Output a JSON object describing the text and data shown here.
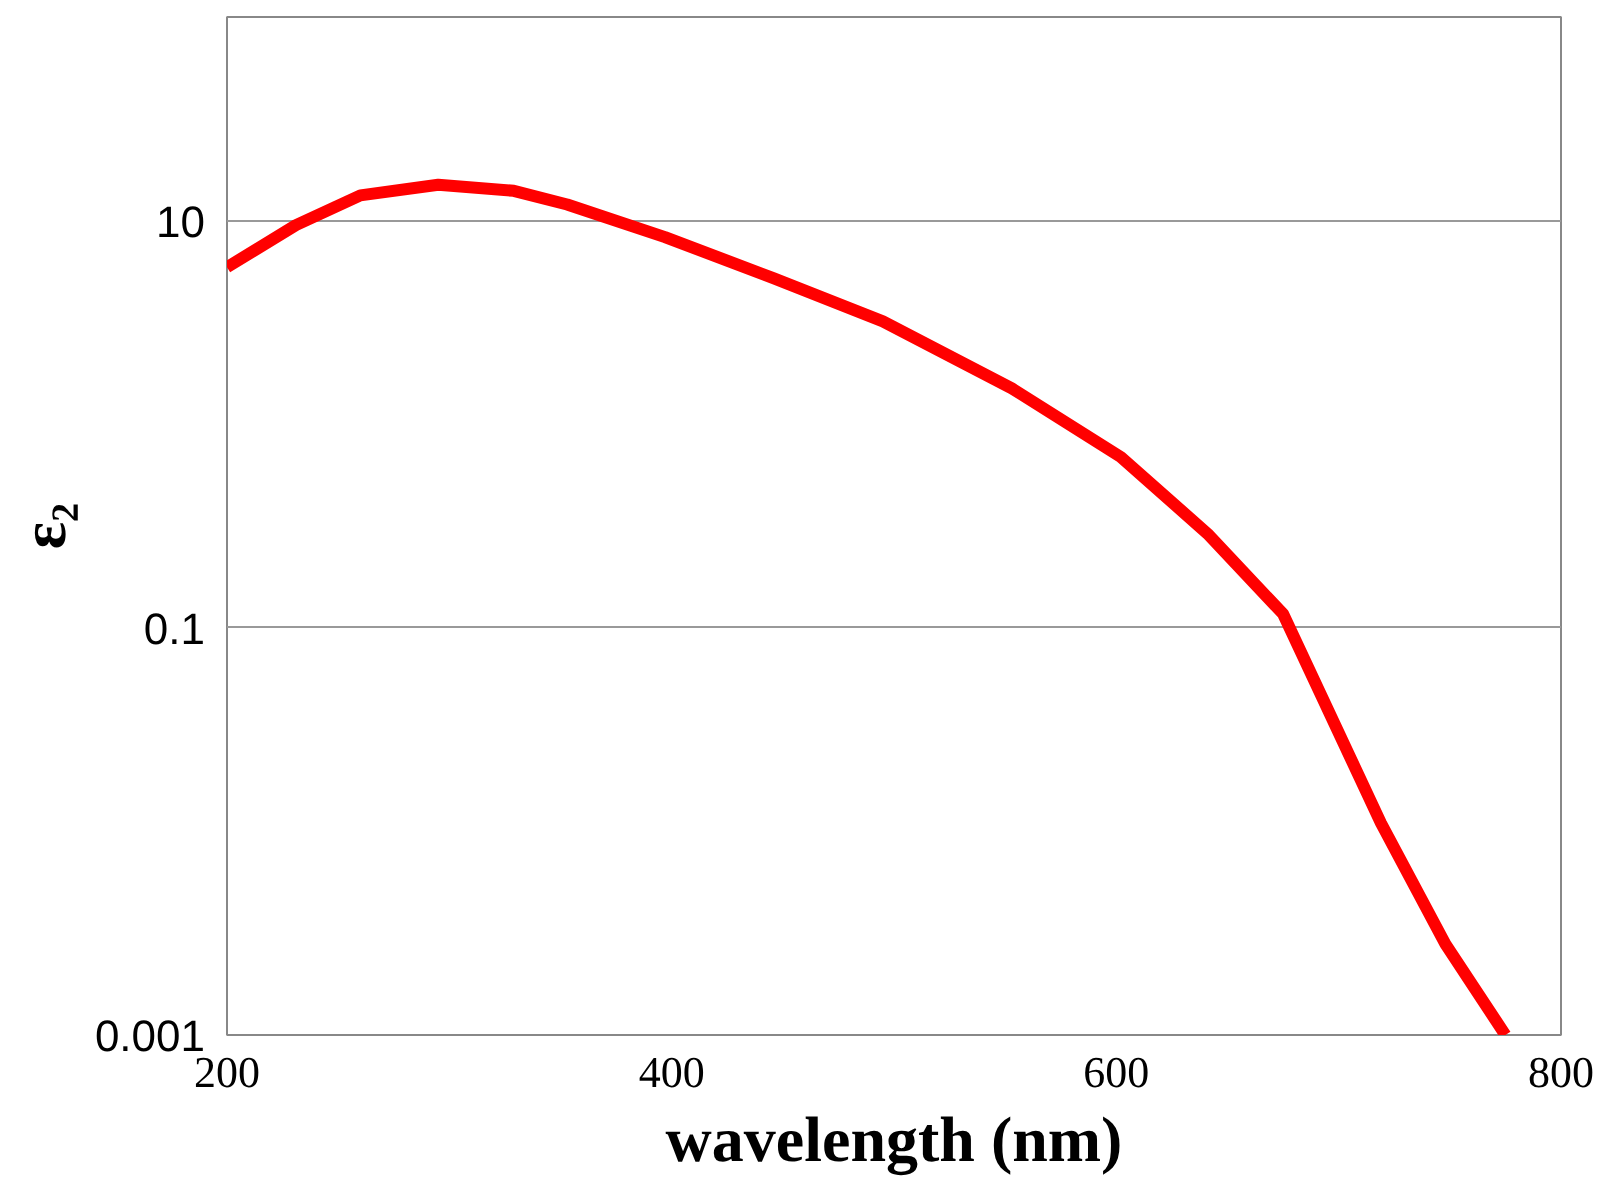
{
  "chart_data": {
    "type": "line",
    "xlabel": "wavelength (nm)",
    "ylabel": "ε₂",
    "log": "y",
    "grid": "y",
    "line_style": "solid",
    "marker": "none",
    "x": [
      200,
      231,
      260,
      295,
      329,
      353,
      397,
      446,
      495,
      553,
      602,
      641,
      675,
      719,
      748,
      775
    ],
    "series": [
      {
        "color": "#ff0000",
        "values": [
          5.9,
          9.5,
          13.3,
          15,
          14,
          12,
          8.3,
          5.2,
          3.2,
          1.5,
          0.69,
          0.29,
          0.117,
          0.011,
          0.0028,
          0.001
        ]
      }
    ],
    "xlim": [
      200,
      800
    ],
    "ylim": [
      0.001,
      100
    ],
    "xticks": [
      200,
      400,
      600,
      800
    ],
    "yticks": [
      0.001,
      0.1,
      10
    ]
  }
}
